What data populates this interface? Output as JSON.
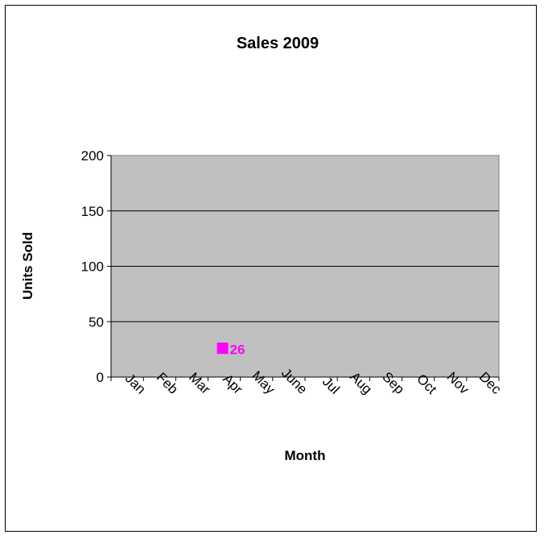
{
  "chart_data": {
    "type": "scatter",
    "title": "Sales 2009",
    "xlabel": "Month",
    "ylabel": "Units Sold",
    "categories": [
      "Jan",
      "Feb",
      "Mar",
      "Apr",
      "May",
      "June",
      "Jul",
      "Aug",
      "Sep",
      "Oct",
      "Nov",
      "Dec"
    ],
    "ylim": [
      0,
      200
    ],
    "yticks": [
      "0",
      "50",
      "100",
      "150",
      "200"
    ],
    "grid": true,
    "series": [
      {
        "points": [
          {
            "x": "Apr",
            "y": 26,
            "label": "26"
          }
        ],
        "color": "#ff00ff",
        "marker": "square"
      }
    ],
    "plot_background": "#c0c0c0"
  }
}
